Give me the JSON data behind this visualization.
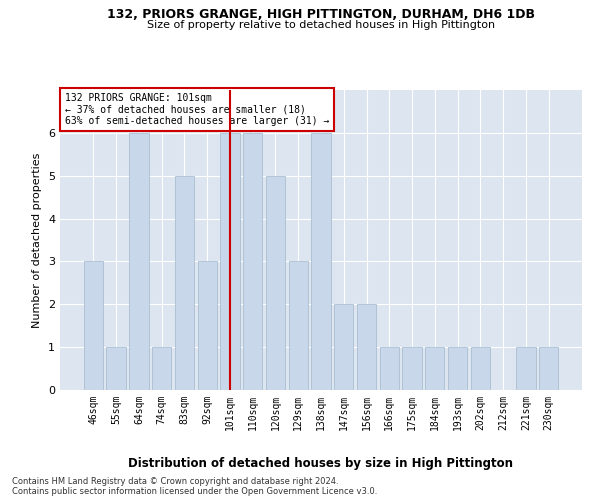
{
  "title1": "132, PRIORS GRANGE, HIGH PITTINGTON, DURHAM, DH6 1DB",
  "title2": "Size of property relative to detached houses in High Pittington",
  "xlabel": "Distribution of detached houses by size in High Pittington",
  "ylabel": "Number of detached properties",
  "categories": [
    "46sqm",
    "55sqm",
    "64sqm",
    "74sqm",
    "83sqm",
    "92sqm",
    "101sqm",
    "110sqm",
    "120sqm",
    "129sqm",
    "138sqm",
    "147sqm",
    "156sqm",
    "166sqm",
    "175sqm",
    "184sqm",
    "193sqm",
    "202sqm",
    "212sqm",
    "221sqm",
    "230sqm"
  ],
  "values": [
    3,
    1,
    6,
    1,
    5,
    3,
    6,
    6,
    5,
    3,
    6,
    2,
    2,
    1,
    1,
    1,
    1,
    1,
    0,
    1,
    1
  ],
  "bar_color": "#c8d8ea",
  "bar_edge_color": "#a0b8cc",
  "highlight_index": 6,
  "highlight_line_color": "#cc0000",
  "annotation_line1": "132 PRIORS GRANGE: 101sqm",
  "annotation_line2": "← 37% of detached houses are smaller (18)",
  "annotation_line3": "63% of semi-detached houses are larger (31) →",
  "annotation_box_color": "#ffffff",
  "annotation_box_edge_color": "#cc0000",
  "ylim": [
    0,
    7
  ],
  "yticks": [
    0,
    1,
    2,
    3,
    4,
    5,
    6
  ],
  "grid_color": "#ffffff",
  "axes_background": "#dde6f0",
  "footnote1": "Contains HM Land Registry data © Crown copyright and database right 2024.",
  "footnote2": "Contains public sector information licensed under the Open Government Licence v3.0."
}
